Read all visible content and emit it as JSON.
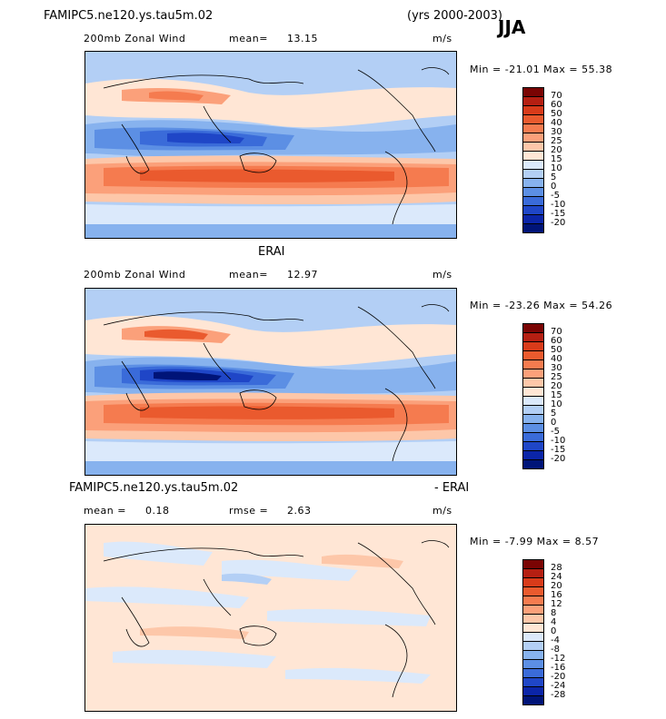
{
  "header": {
    "run_name": "FAMIPC5.ne120.ys.tau5m.02",
    "years": "(yrs 2000-2003)",
    "season": "JJA"
  },
  "panels": [
    {
      "title": "",
      "left_label": "200mb Zonal Wind",
      "mean_label": "mean=",
      "mean_value": "13.15",
      "units": "m/s",
      "minmax": "Min = -21.01 Max =  55.38",
      "colorbar_ticks": [
        "70",
        "60",
        "50",
        "40",
        "30",
        "25",
        "20",
        "15",
        "10",
        "5",
        "0",
        "-5",
        "-10",
        "-15",
        "-20"
      ],
      "colors": [
        "#7a0403",
        "#b51f12",
        "#d83b1a",
        "#ea5a2e",
        "#f57b4f",
        "#fba07a",
        "#fdc7a9",
        "#ffe6d5",
        "#dbe9fb",
        "#b3cff5",
        "#87b2ee",
        "#5c8fe4",
        "#3a6bd9",
        "#1f46c7",
        "#0b25a8",
        "#001478"
      ]
    },
    {
      "title": "ERAI",
      "left_label": "200mb Zonal Wind",
      "mean_label": "mean=",
      "mean_value": "12.97",
      "units": "m/s",
      "minmax": "Min = -23.26 Max =  54.26",
      "colorbar_ticks": [
        "70",
        "60",
        "50",
        "40",
        "30",
        "25",
        "20",
        "15",
        "10",
        "5",
        "0",
        "-5",
        "-10",
        "-15",
        "-20"
      ],
      "colors": [
        "#7a0403",
        "#b51f12",
        "#d83b1a",
        "#ea5a2e",
        "#f57b4f",
        "#fba07a",
        "#fdc7a9",
        "#ffe6d5",
        "#dbe9fb",
        "#b3cff5",
        "#87b2ee",
        "#5c8fe4",
        "#3a6bd9",
        "#1f46c7",
        "#0b25a8",
        "#001478"
      ]
    },
    {
      "title_left": "FAMIPC5.ne120.ys.tau5m.02",
      "title_right": "- ERAI",
      "mean_label": "mean =",
      "mean_value": "0.18",
      "rmse_label": "rmse =",
      "rmse_value": "2.63",
      "units": "m/s",
      "minmax": "Min = -7.99 Max =   8.57",
      "colorbar_ticks": [
        "28",
        "24",
        "20",
        "16",
        "12",
        "8",
        "4",
        "0",
        "-4",
        "-8",
        "-12",
        "-16",
        "-20",
        "-24",
        "-28"
      ],
      "colors": [
        "#7a0403",
        "#b51f12",
        "#d83b1a",
        "#ea5a2e",
        "#f57b4f",
        "#fba07a",
        "#fdc7a9",
        "#ffe6d5",
        "#dbe9fb",
        "#b3cff5",
        "#87b2ee",
        "#5c8fe4",
        "#3a6bd9",
        "#1f46c7",
        "#0b25a8",
        "#001478"
      ]
    }
  ]
}
